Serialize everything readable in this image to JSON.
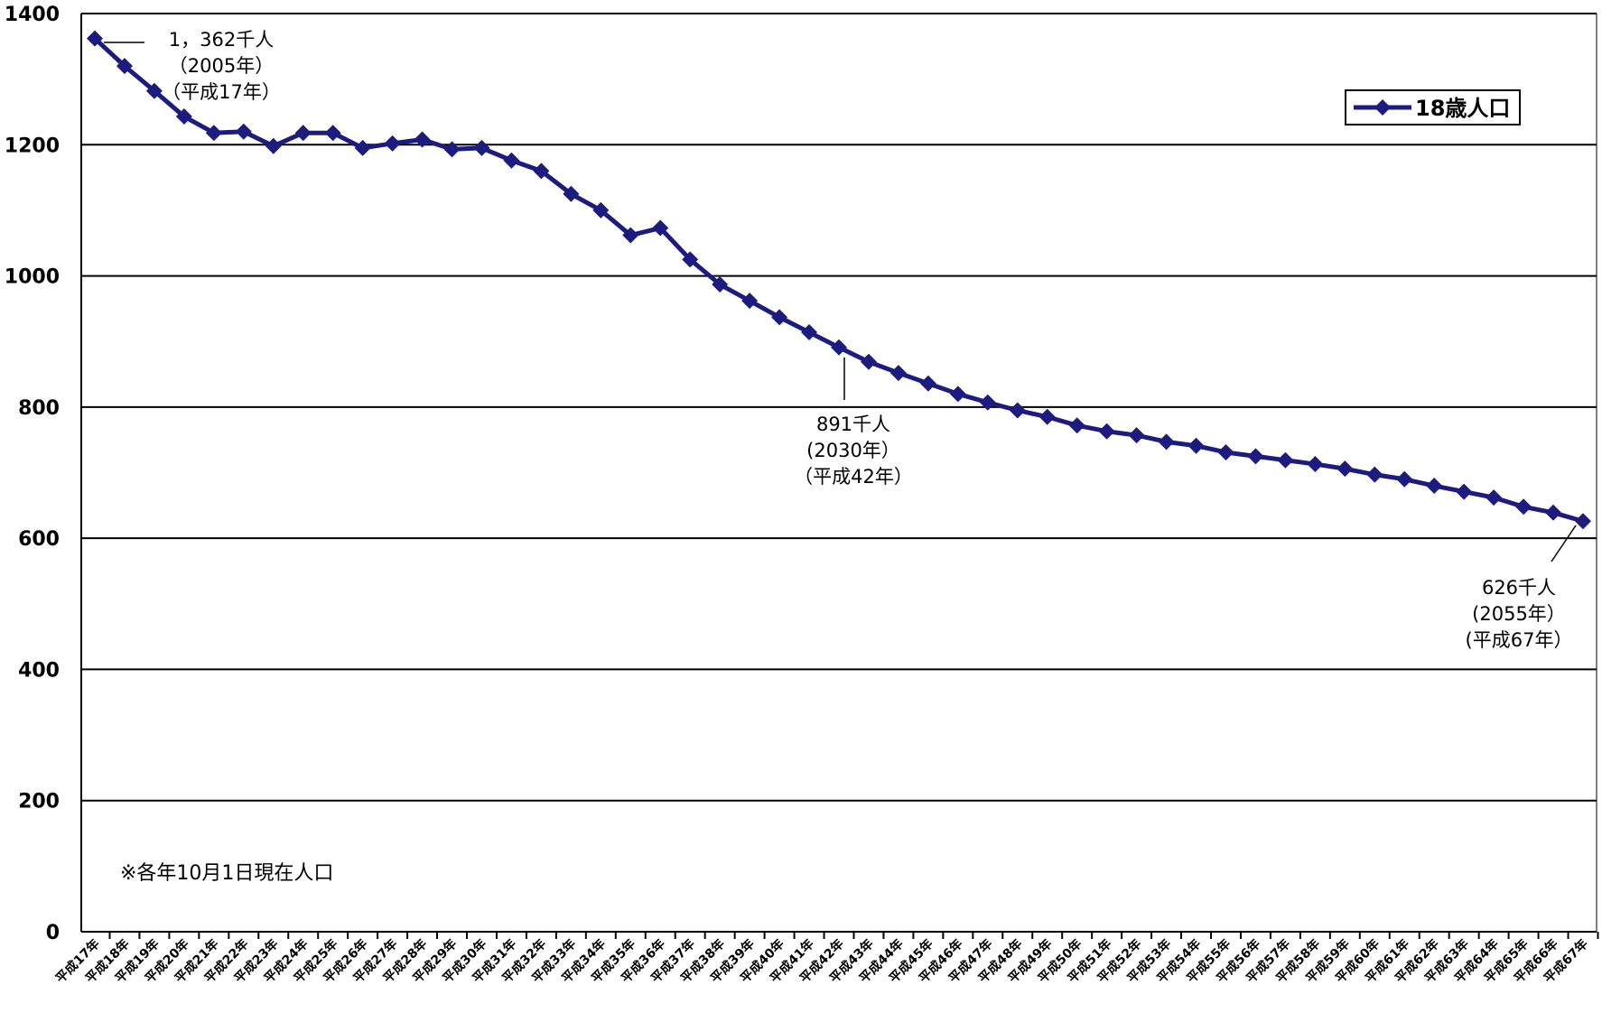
{
  "chart_data": {
    "type": "line",
    "title": "",
    "xlabel": "",
    "ylabel": "",
    "ylim": [
      0,
      1400
    ],
    "yticks": [
      0,
      200,
      400,
      600,
      800,
      1000,
      1200,
      1400
    ],
    "grid": true,
    "legend_position": "top-right",
    "colors": {
      "series": "#1b1b80",
      "grid": "#000000"
    },
    "categories": [
      "平成17年",
      "平成18年",
      "平成19年",
      "平成20年",
      "平成21年",
      "平成22年",
      "平成23年",
      "平成24年",
      "平成25年",
      "平成26年",
      "平成27年",
      "平成28年",
      "平成29年",
      "平成30年",
      "平成31年",
      "平成32年",
      "平成33年",
      "平成34年",
      "平成35年",
      "平成36年",
      "平成37年",
      "平成38年",
      "平成39年",
      "平成40年",
      "平成41年",
      "平成42年",
      "平成43年",
      "平成44年",
      "平成45年",
      "平成46年",
      "平成47年",
      "平成48年",
      "平成49年",
      "平成50年",
      "平成51年",
      "平成52年",
      "平成53年",
      "平成54年",
      "平成55年",
      "平成56年",
      "平成57年",
      "平成58年",
      "平成59年",
      "平成60年",
      "平成61年",
      "平成62年",
      "平成63年",
      "平成64年",
      "平成65年",
      "平成66年",
      "平成67年"
    ],
    "series": [
      {
        "name": "18歳人口",
        "values": [
          1362,
          1320,
          1282,
          1243,
          1218,
          1220,
          1198,
          1218,
          1218,
          1195,
          1202,
          1208,
          1193,
          1195,
          1176,
          1160,
          1125,
          1100,
          1062,
          1073,
          1025,
          987,
          962,
          937,
          914,
          891,
          869,
          852,
          836,
          820,
          807,
          795,
          785,
          772,
          763,
          757,
          747,
          741,
          731,
          725,
          719,
          713,
          706,
          697,
          690,
          680,
          671,
          662,
          648,
          639,
          626
        ]
      }
    ],
    "annotations": [
      {
        "index": 0,
        "lines": [
          "1，362千人",
          "（2005年）",
          "（平成17年）"
        ]
      },
      {
        "index": 25,
        "lines": [
          "891千人",
          "(2030年）",
          "（平成42年）"
        ]
      },
      {
        "index": 50,
        "lines": [
          "626千人",
          "(2055年）",
          "(平成67年）"
        ]
      }
    ],
    "note": "※各年10月1日現在人口"
  }
}
